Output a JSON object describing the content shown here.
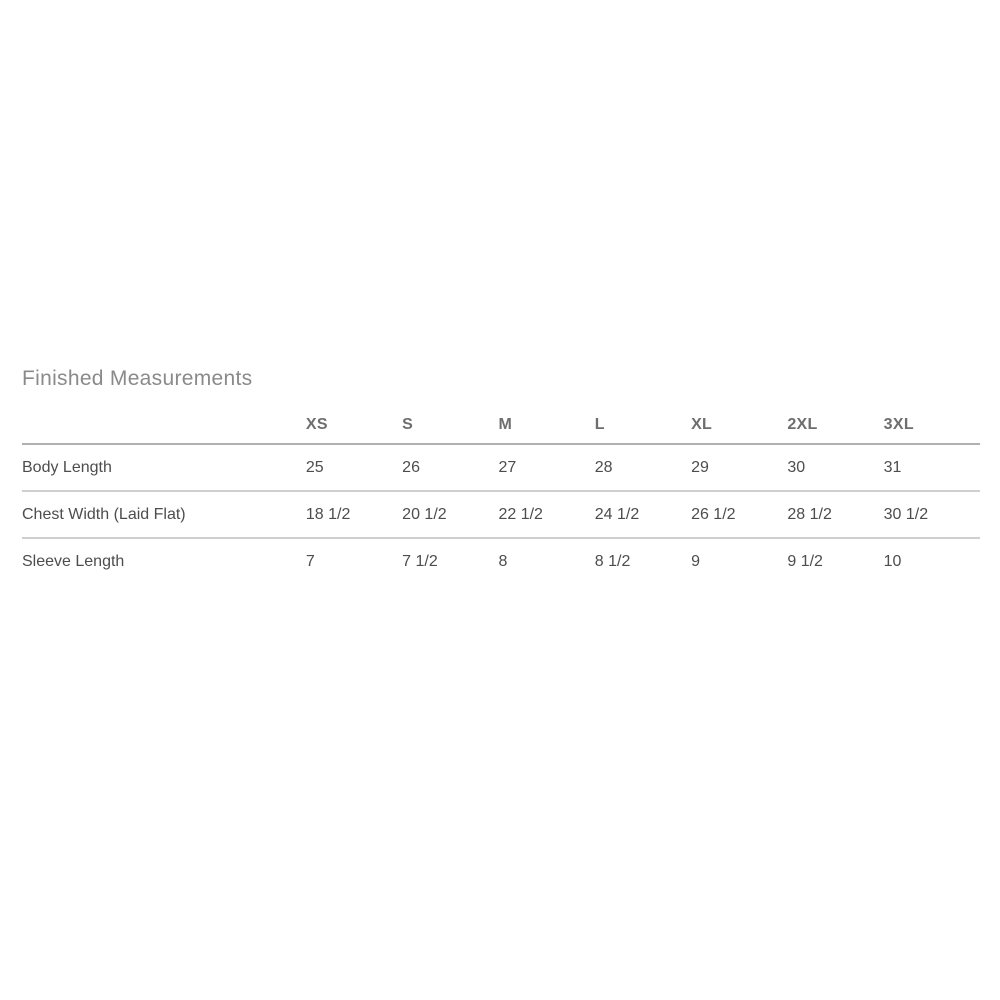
{
  "page": {
    "background_color": "#ffffff"
  },
  "section": {
    "title": "Finished Measurements",
    "title_color": "#8a8a8a"
  },
  "size_chart": {
    "columns": [
      "XS",
      "S",
      "M",
      "L",
      "XL",
      "2XL",
      "3XL"
    ],
    "rows": [
      {
        "label": "Body Length",
        "values": [
          "25",
          "26",
          "27",
          "28",
          "29",
          "30",
          "31"
        ]
      },
      {
        "label": "Chest Width (Laid Flat)",
        "values": [
          "18 1/2",
          "20 1/2",
          "22 1/2",
          "24 1/2",
          "26 1/2",
          "28 1/2",
          "30 1/2"
        ]
      },
      {
        "label": "Sleeve Length",
        "values": [
          "7",
          "7 1/2",
          "8",
          "8 1/2",
          "9",
          "9 1/2",
          "10"
        ]
      }
    ]
  },
  "colors": {
    "header_text": "#6e6e6e",
    "cell_text": "#4d4d4d",
    "header_divider": "#b0b0b0",
    "row_divider": "#cfcfcf"
  }
}
